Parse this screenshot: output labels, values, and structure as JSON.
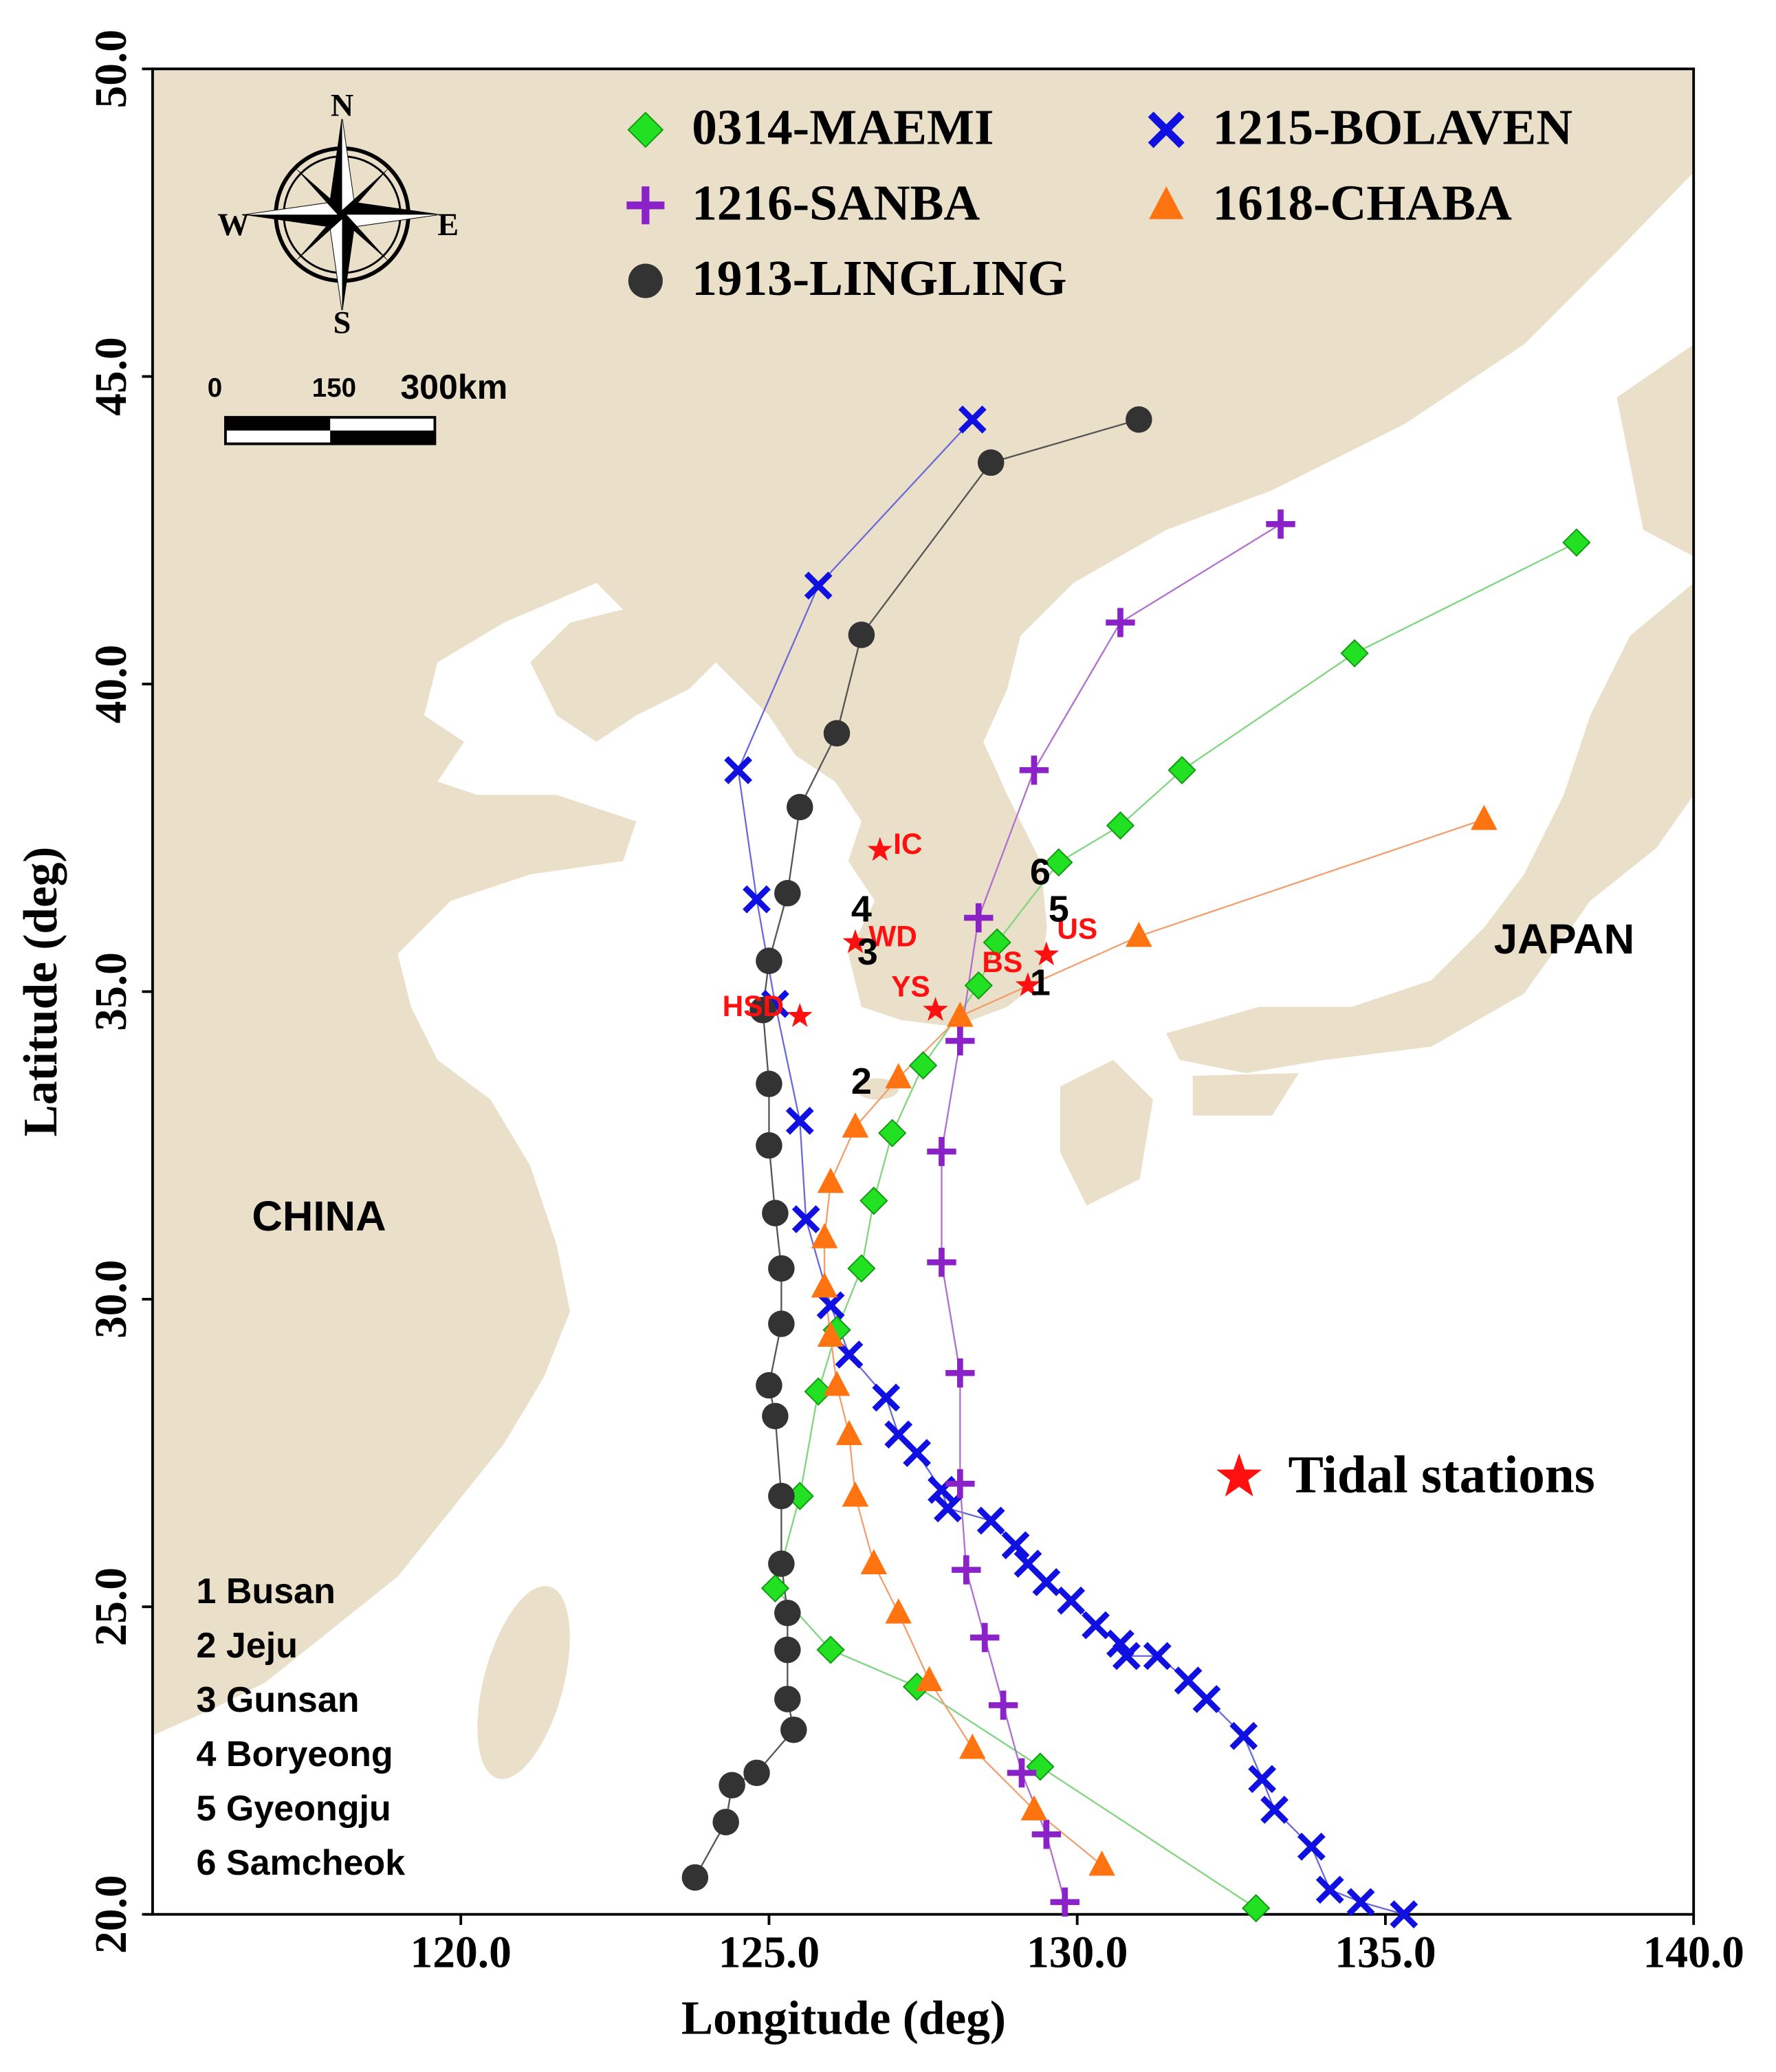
{
  "chart_data": {
    "type": "line",
    "xlabel": "Longitude (deg)",
    "ylabel": "Latitude (deg)",
    "xlim": [
      115,
      140
    ],
    "ylim": [
      20,
      50
    ],
    "xticks": [
      {
        "value": 120,
        "label": "120.0"
      },
      {
        "value": 125,
        "label": "125.0"
      },
      {
        "value": 130,
        "label": "130.0"
      },
      {
        "value": 135,
        "label": "135.0"
      },
      {
        "value": 140,
        "label": "140.0"
      }
    ],
    "yticks": [
      {
        "value": 20,
        "label": "20.0"
      },
      {
        "value": 25,
        "label": "25.0"
      },
      {
        "value": 30,
        "label": "30.0"
      },
      {
        "value": 35,
        "label": "35.0"
      },
      {
        "value": 40,
        "label": "40.0"
      },
      {
        "value": 45,
        "label": "45.0"
      },
      {
        "value": 50,
        "label": "50.0"
      }
    ],
    "series": [
      {
        "name": "0314-MAEMI",
        "color": "#22e022",
        "marker": "diamond",
        "x": [
          132.9,
          129.4,
          127.4,
          126.0,
          125.1,
          125.5,
          125.8,
          126.1,
          126.5,
          126.7,
          127.0,
          127.5,
          128.4,
          128.7,
          129.7,
          130.7,
          131.7,
          134.5,
          138.1
        ],
        "y": [
          20.1,
          22.4,
          23.7,
          24.3,
          25.3,
          26.8,
          28.5,
          29.5,
          30.5,
          31.6,
          32.7,
          33.8,
          35.1,
          35.8,
          37.1,
          37.7,
          38.6,
          40.5,
          42.3
        ]
      },
      {
        "name": "1215-BOLAVEN",
        "color": "#1010e0",
        "marker": "cross",
        "x": [
          135.3,
          134.6,
          134.1,
          133.8,
          133.2,
          133.0,
          132.7,
          132.1,
          131.8,
          131.3,
          130.8,
          130.7,
          130.3,
          129.9,
          129.5,
          129.2,
          129.0,
          128.6,
          127.9,
          127.8,
          127.4,
          127.1,
          126.9,
          126.3,
          126.0,
          125.6,
          125.5,
          125.1,
          124.8,
          124.5,
          125.8,
          128.3
        ],
        "y": [
          20.0,
          20.2,
          20.4,
          21.1,
          21.7,
          22.2,
          22.9,
          23.5,
          23.8,
          24.2,
          24.2,
          24.4,
          24.7,
          25.1,
          25.4,
          25.7,
          26.0,
          26.4,
          26.6,
          26.9,
          27.5,
          27.8,
          28.4,
          29.1,
          29.9,
          31.3,
          32.9,
          34.8,
          36.5,
          38.6,
          41.6,
          44.3
        ]
      },
      {
        "name": "1216-SANBA",
        "color": "#8b22c8",
        "marker": "plus",
        "x": [
          129.8,
          129.5,
          129.1,
          128.8,
          128.5,
          128.2,
          128.1,
          128.1,
          127.8,
          127.8,
          128.1,
          128.4,
          129.3,
          130.7,
          133.3
        ],
        "y": [
          20.2,
          21.3,
          22.3,
          23.4,
          24.5,
          25.6,
          27.0,
          28.8,
          30.6,
          32.4,
          34.2,
          36.2,
          38.6,
          41.0,
          42.6
        ]
      },
      {
        "name": "1618-CHABA",
        "color": "#ff7410",
        "marker": "triangle",
        "x": [
          130.4,
          129.3,
          128.3,
          127.6,
          127.1,
          126.7,
          126.4,
          126.3,
          126.1,
          126.0,
          125.9,
          125.9,
          126.0,
          126.4,
          127.1,
          128.1,
          131.0,
          136.6
        ],
        "y": [
          20.8,
          21.7,
          22.7,
          23.8,
          24.9,
          25.7,
          26.8,
          27.8,
          28.6,
          29.4,
          30.2,
          31.0,
          31.9,
          32.8,
          33.6,
          34.6,
          35.9,
          37.8
        ]
      },
      {
        "name": "1913-LINGLING",
        "color": "#333333",
        "marker": "circle",
        "x": [
          123.8,
          124.3,
          124.4,
          124.8,
          125.4,
          125.3,
          125.3,
          125.3,
          125.2,
          125.2,
          125.1,
          125.0,
          125.2,
          125.2,
          125.1,
          125.0,
          125.0,
          124.9,
          125.0,
          125.3,
          125.5,
          126.1,
          126.5,
          128.6,
          131.0
        ],
        "y": [
          20.6,
          21.5,
          22.1,
          22.3,
          23.0,
          23.5,
          24.3,
          24.9,
          25.7,
          26.8,
          28.1,
          28.6,
          29.6,
          30.5,
          31.4,
          32.5,
          33.5,
          34.7,
          35.5,
          36.6,
          38.0,
          39.2,
          40.8,
          43.6,
          44.3
        ]
      }
    ],
    "stations": {
      "name": "Tidal stations",
      "color": "#ff1010",
      "labels": [
        "IC",
        "WD",
        "HSD",
        "YS",
        "BS",
        "US"
      ],
      "x": [
        126.8,
        126.4,
        125.5,
        127.7,
        129.2,
        129.5
      ],
      "y": [
        37.3,
        35.8,
        34.6,
        34.7,
        35.1,
        35.6
      ]
    },
    "site_markers": {
      "labels": [
        "1",
        "2",
        "3",
        "4",
        "5",
        "6"
      ],
      "x": [
        129.4,
        126.5,
        126.6,
        126.5,
        129.7,
        129.4
      ],
      "y": [
        35.1,
        33.5,
        35.6,
        36.3,
        36.3,
        36.9
      ]
    },
    "sites": [
      "1 Busan",
      "2 Jeju",
      "3 Gunsan",
      "4 Boryeong",
      "5 Gyeongju",
      "6 Samcheok"
    ],
    "regions": {
      "labels": [
        "CHINA",
        "JAPAN"
      ],
      "x": [
        117.7,
        137.9
      ],
      "y": [
        31.3,
        35.8
      ]
    },
    "compass_labels": [
      "N",
      "E",
      "S",
      "W"
    ],
    "scale_labels": [
      "0",
      "150",
      "300km"
    ]
  }
}
